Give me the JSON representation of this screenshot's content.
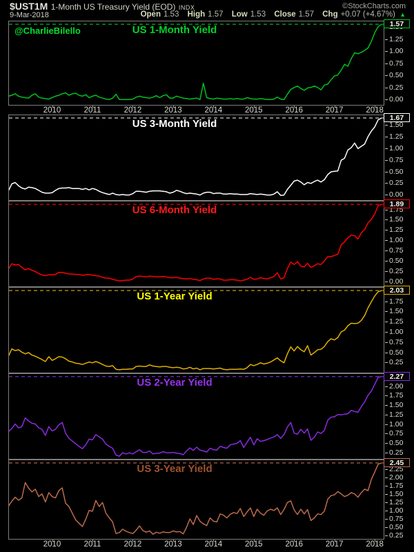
{
  "header": {
    "symbol": "$UST1M",
    "title": "1-Month US Treasury Yield (EOD)",
    "exchange": "INDX",
    "source": "©StockCharts.com",
    "date": "9-Mar-2018",
    "open_label": "Open",
    "open": "1.53",
    "high_label": "High",
    "high": "1.57",
    "low_label": "Low",
    "low": "1.53",
    "close_label": "Close",
    "close": "1.57",
    "chg_label": "Chg",
    "chg": "+0.07 (+4.67%)",
    "up_arrow": "▲",
    "up_color": "#00cc33"
  },
  "watermark": "@CharlieBilello",
  "x_axis": {
    "years": [
      "2010",
      "2011",
      "2012",
      "2013",
      "2014",
      "2015",
      "2016",
      "2017",
      "2018"
    ],
    "domain": [
      2008.93,
      2018.22
    ]
  },
  "chart_data": [
    {
      "type": "line",
      "name": "us-1-month-yield",
      "title": "US 1-Month Yield",
      "color": "#00c020",
      "title_color": "#00d22a",
      "last_value": 1.57,
      "last_label": "1.57",
      "ylim": [
        -0.1,
        1.63
      ],
      "yticks": [
        1.5,
        1.25,
        1.0,
        0.75,
        0.5,
        0.25,
        0.0
      ],
      "x_start": 2008.917,
      "points_per_year": 12,
      "grid": false,
      "values": [
        0.08,
        0.1,
        0.13,
        0.08,
        0.06,
        0.05,
        0.04,
        0.1,
        0.13,
        0.06,
        0.04,
        0.03,
        0.02,
        0.05,
        0.08,
        0.1,
        0.13,
        0.15,
        0.1,
        0.13,
        0.14,
        0.1,
        0.08,
        0.11,
        0.05,
        0.08,
        0.1,
        0.06,
        0.04,
        0.02,
        0.01,
        0.04,
        0.12,
        0.01,
        0.01,
        0.01,
        0.01,
        0.02,
        0.06,
        0.08,
        0.06,
        0.05,
        0.04,
        0.06,
        0.09,
        0.05,
        0.09,
        0.11,
        0.04,
        0.04,
        0.08,
        0.06,
        0.04,
        0.03,
        0.02,
        0.03,
        0.04,
        0.01,
        0.35,
        0.05,
        0.03,
        0.02,
        0.04,
        0.03,
        0.02,
        0.02,
        0.03,
        0.02,
        0.03,
        0.02,
        0.02,
        0.05,
        0.03,
        0.02,
        0.02,
        0.03,
        0.02,
        0.01,
        0.01,
        0.02,
        0.06,
        0.02,
        0.01,
        0.12,
        0.22,
        0.26,
        0.29,
        0.24,
        0.2,
        0.25,
        0.26,
        0.29,
        0.26,
        0.21,
        0.31,
        0.33,
        0.42,
        0.5,
        0.52,
        0.62,
        0.74,
        0.7,
        0.86,
        0.98,
        0.96,
        0.99,
        1.03,
        1.08,
        1.22,
        1.4,
        1.52,
        1.57
      ]
    },
    {
      "type": "line",
      "name": "us-3-month-yield",
      "title": "US 3-Month Yield",
      "color": "#ffffff",
      "title_color": "#ffffff",
      "last_value": 1.67,
      "last_label": "1.67",
      "ylim": [
        -0.1,
        1.73
      ],
      "yticks": [
        1.5,
        1.25,
        1.0,
        0.75,
        0.5,
        0.25,
        0.0
      ],
      "x_start": 2008.917,
      "points_per_year": 12,
      "grid": false,
      "values": [
        0.1,
        0.25,
        0.28,
        0.21,
        0.16,
        0.14,
        0.18,
        0.17,
        0.15,
        0.11,
        0.07,
        0.05,
        0.05,
        0.06,
        0.11,
        0.15,
        0.16,
        0.16,
        0.17,
        0.15,
        0.15,
        0.15,
        0.13,
        0.15,
        0.12,
        0.15,
        0.13,
        0.09,
        0.06,
        0.04,
        0.02,
        0.05,
        0.02,
        0.01,
        0.02,
        0.01,
        0.01,
        0.04,
        0.09,
        0.09,
        0.08,
        0.07,
        0.09,
        0.1,
        0.1,
        0.1,
        0.09,
        0.08,
        0.05,
        0.07,
        0.11,
        0.09,
        0.06,
        0.04,
        0.05,
        0.04,
        0.03,
        0.01,
        0.05,
        0.07,
        0.07,
        0.04,
        0.05,
        0.05,
        0.03,
        0.03,
        0.04,
        0.03,
        0.03,
        0.02,
        0.02,
        0.02,
        0.04,
        0.03,
        0.02,
        0.03,
        0.02,
        0.01,
        0.01,
        0.03,
        0.08,
        0.0,
        0.01,
        0.13,
        0.22,
        0.31,
        0.33,
        0.29,
        0.23,
        0.28,
        0.26,
        0.3,
        0.33,
        0.29,
        0.34,
        0.45,
        0.51,
        0.52,
        0.53,
        0.76,
        0.8,
        0.98,
        1.03,
        1.13,
        1.01,
        1.06,
        1.11,
        1.27,
        1.39,
        1.48,
        1.63,
        1.67
      ]
    },
    {
      "type": "line",
      "name": "us-6-month-yield",
      "title": "US 6-Month Yield",
      "color": "#ff0000",
      "title_color": "#ff1a1a",
      "last_value": 1.89,
      "last_label": "1.89",
      "ylim": [
        -0.1,
        1.96
      ],
      "yticks": [
        1.75,
        1.5,
        1.25,
        1.0,
        0.75,
        0.5,
        0.25,
        0.0
      ],
      "x_start": 2008.917,
      "points_per_year": 12,
      "grid": false,
      "values": [
        0.32,
        0.45,
        0.42,
        0.43,
        0.36,
        0.3,
        0.33,
        0.29,
        0.26,
        0.21,
        0.18,
        0.16,
        0.18,
        0.18,
        0.19,
        0.24,
        0.24,
        0.22,
        0.2,
        0.2,
        0.19,
        0.19,
        0.17,
        0.18,
        0.19,
        0.17,
        0.16,
        0.15,
        0.12,
        0.1,
        0.1,
        0.07,
        0.05,
        0.03,
        0.04,
        0.05,
        0.05,
        0.08,
        0.14,
        0.15,
        0.14,
        0.13,
        0.15,
        0.14,
        0.13,
        0.13,
        0.14,
        0.13,
        0.11,
        0.11,
        0.12,
        0.1,
        0.09,
        0.08,
        0.09,
        0.07,
        0.06,
        0.04,
        0.08,
        0.1,
        0.1,
        0.07,
        0.08,
        0.08,
        0.05,
        0.05,
        0.06,
        0.06,
        0.05,
        0.03,
        0.05,
        0.07,
        0.12,
        0.07,
        0.08,
        0.11,
        0.09,
        0.08,
        0.11,
        0.14,
        0.23,
        0.08,
        0.11,
        0.33,
        0.49,
        0.43,
        0.5,
        0.39,
        0.37,
        0.46,
        0.36,
        0.4,
        0.45,
        0.43,
        0.52,
        0.62,
        0.62,
        0.65,
        0.68,
        0.91,
        0.98,
        1.08,
        1.14,
        1.13,
        1.05,
        1.2,
        1.28,
        1.44,
        1.53,
        1.66,
        1.86,
        1.89
      ]
    },
    {
      "type": "line",
      "name": "us-1-year-yield",
      "title": "US 1-Year Yield",
      "color": "#e0b000",
      "title_color": "#ffff00",
      "last_value": 2.03,
      "last_label": "2.03",
      "ylim": [
        0.02,
        2.1
      ],
      "yticks": [
        1.75,
        1.5,
        1.25,
        1.0,
        0.75,
        0.5,
        0.25
      ],
      "x_start": 2008.917,
      "points_per_year": 12,
      "grid": false,
      "values": [
        0.42,
        0.6,
        0.56,
        0.58,
        0.52,
        0.48,
        0.51,
        0.45,
        0.42,
        0.38,
        0.34,
        0.29,
        0.41,
        0.32,
        0.36,
        0.41,
        0.4,
        0.36,
        0.3,
        0.28,
        0.25,
        0.24,
        0.22,
        0.25,
        0.28,
        0.26,
        0.29,
        0.26,
        0.22,
        0.18,
        0.17,
        0.19,
        0.1,
        0.09,
        0.1,
        0.1,
        0.11,
        0.11,
        0.17,
        0.18,
        0.17,
        0.17,
        0.21,
        0.18,
        0.17,
        0.16,
        0.17,
        0.17,
        0.15,
        0.14,
        0.15,
        0.14,
        0.11,
        0.12,
        0.15,
        0.11,
        0.13,
        0.09,
        0.12,
        0.12,
        0.12,
        0.11,
        0.12,
        0.13,
        0.1,
        0.09,
        0.1,
        0.1,
        0.1,
        0.11,
        0.1,
        0.14,
        0.22,
        0.19,
        0.22,
        0.26,
        0.23,
        0.25,
        0.28,
        0.33,
        0.38,
        0.31,
        0.26,
        0.48,
        0.65,
        0.55,
        0.66,
        0.58,
        0.53,
        0.68,
        0.45,
        0.51,
        0.58,
        0.59,
        0.66,
        0.78,
        0.85,
        0.82,
        0.88,
        1.02,
        1.06,
        1.17,
        1.23,
        1.22,
        1.23,
        1.3,
        1.42,
        1.61,
        1.76,
        1.9,
        2.0,
        2.03
      ]
    },
    {
      "type": "line",
      "name": "us-2-year-yield",
      "title": "US 2-Year Yield",
      "color": "#8a2be2",
      "title_color": "#9933ee",
      "last_value": 2.27,
      "last_label": "2.27",
      "ylim": [
        0.1,
        2.34
      ],
      "yticks": [
        2.0,
        1.75,
        1.5,
        1.25,
        1.0,
        0.75,
        0.5,
        0.25
      ],
      "x_start": 2008.917,
      "points_per_year": 12,
      "grid": false,
      "values": [
        0.82,
        0.9,
        1.02,
        0.92,
        0.95,
        1.18,
        1.1,
        1.04,
        1.02,
        0.92,
        0.88,
        0.72,
        0.95,
        0.84,
        0.88,
        1.0,
        1.06,
        0.78,
        0.64,
        0.57,
        0.5,
        0.43,
        0.37,
        0.47,
        0.62,
        0.6,
        0.74,
        0.68,
        0.62,
        0.49,
        0.43,
        0.38,
        0.2,
        0.17,
        0.26,
        0.23,
        0.26,
        0.23,
        0.29,
        0.34,
        0.27,
        0.27,
        0.31,
        0.23,
        0.25,
        0.25,
        0.29,
        0.26,
        0.26,
        0.27,
        0.25,
        0.24,
        0.21,
        0.31,
        0.39,
        0.32,
        0.41,
        0.33,
        0.31,
        0.28,
        0.38,
        0.34,
        0.33,
        0.43,
        0.4,
        0.38,
        0.47,
        0.49,
        0.51,
        0.58,
        0.4,
        0.54,
        0.67,
        0.47,
        0.63,
        0.56,
        0.58,
        0.61,
        0.65,
        0.68,
        0.74,
        0.64,
        0.74,
        0.94,
        1.06,
        0.78,
        0.75,
        0.88,
        0.78,
        0.89,
        0.59,
        0.67,
        0.81,
        0.77,
        0.85,
        1.12,
        1.2,
        1.21,
        1.27,
        1.26,
        1.28,
        1.29,
        1.38,
        1.35,
        1.33,
        1.48,
        1.6,
        1.78,
        1.89,
        2.07,
        2.25,
        2.27
      ]
    },
    {
      "type": "line",
      "name": "us-3-year-yield",
      "title": "US 3-Year Yield",
      "color": "#bd6b4b",
      "title_color": "#a0522d",
      "last_value": 2.45,
      "last_label": "2.45",
      "ylim": [
        0.17,
        2.53
      ],
      "yticks": [
        2.25,
        2.0,
        1.75,
        1.5,
        1.25,
        1.0,
        0.75,
        0.5,
        0.25
      ],
      "x_start": 2008.917,
      "points_per_year": 12,
      "grid": false,
      "values": [
        1.15,
        1.3,
        1.42,
        1.33,
        1.4,
        1.86,
        1.69,
        1.58,
        1.66,
        1.44,
        1.52,
        1.28,
        1.56,
        1.44,
        1.4,
        1.62,
        1.7,
        1.24,
        1.14,
        0.94,
        0.74,
        0.64,
        0.54,
        0.76,
        1.02,
        1.0,
        1.32,
        1.14,
        1.26,
        0.94,
        0.8,
        0.68,
        0.33,
        0.36,
        0.46,
        0.4,
        0.36,
        0.33,
        0.43,
        0.56,
        0.42,
        0.37,
        0.41,
        0.31,
        0.37,
        0.34,
        0.38,
        0.36,
        0.36,
        0.41,
        0.38,
        0.39,
        0.32,
        0.52,
        0.77,
        0.6,
        0.87,
        0.7,
        0.62,
        0.57,
        0.8,
        0.7,
        0.68,
        0.92,
        0.88,
        0.8,
        0.91,
        0.96,
        0.93,
        1.08,
        0.84,
        0.98,
        1.1,
        0.84,
        1.06,
        0.94,
        0.88,
        1.01,
        1.06,
        1.02,
        1.1,
        0.9,
        1.05,
        1.26,
        1.31,
        1.04,
        0.9,
        1.06,
        0.92,
        1.05,
        0.72,
        0.8,
        0.92,
        0.9,
        1.0,
        1.36,
        1.47,
        1.49,
        1.59,
        1.52,
        1.44,
        1.48,
        1.56,
        1.52,
        1.42,
        1.56,
        1.66,
        1.62,
        1.96,
        2.18,
        2.41,
        2.45
      ]
    }
  ]
}
